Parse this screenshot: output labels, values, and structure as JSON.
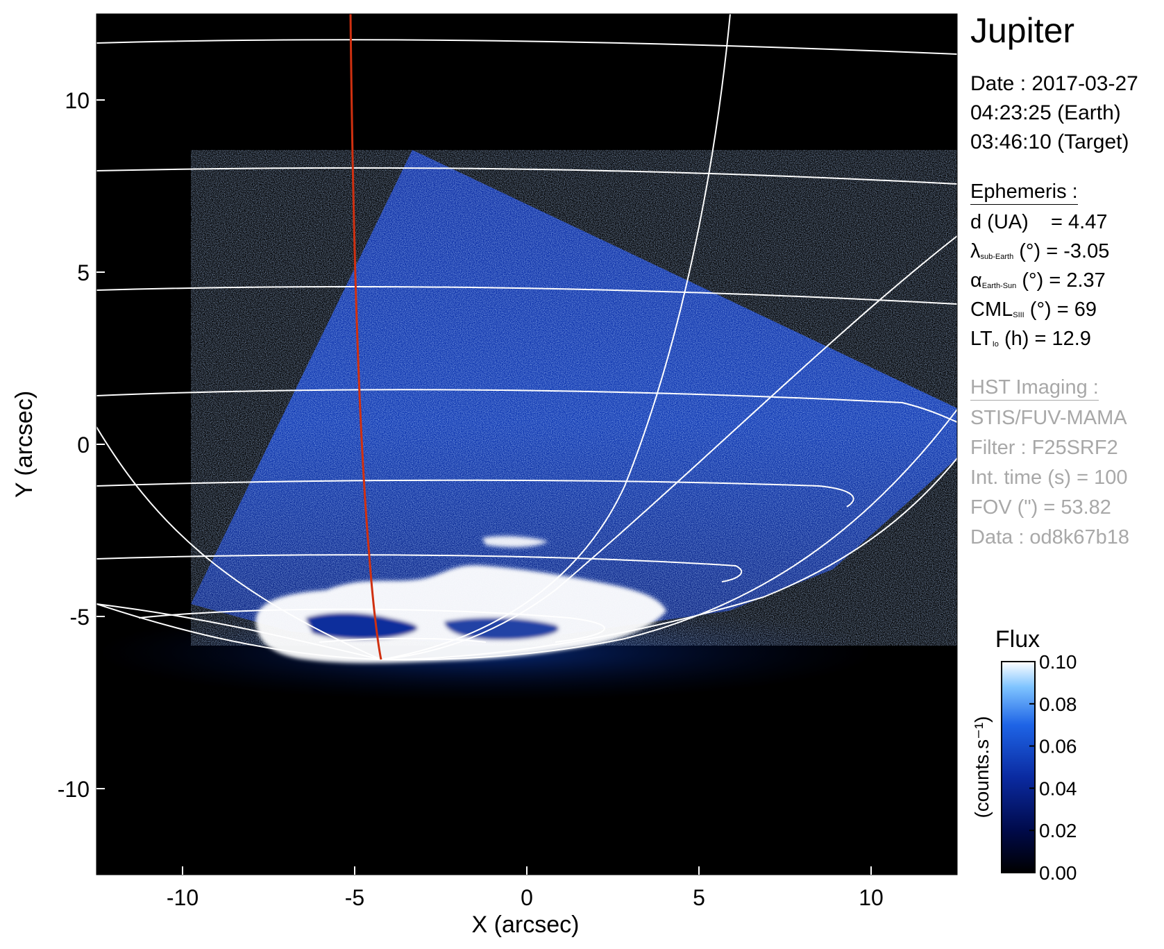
{
  "title": "Jupiter",
  "date": {
    "line1": "Date : 2017-03-27",
    "line2": "04:23:25 (Earth)",
    "line3": "03:46:10 (Target)"
  },
  "ephemeris": {
    "heading": "Ephemeris :",
    "rows": [
      {
        "symbol": "d (UA)",
        "sub": "",
        "rest": "    = 4.47"
      },
      {
        "symbol": "λ",
        "sub": "sub-Earth",
        "rest": " (°) = -3.05"
      },
      {
        "symbol": "α",
        "sub": "Earth-Sun",
        "rest": " (°) = 2.37"
      },
      {
        "symbol": "CML",
        "sub": "SIII",
        "rest": " (°) = 69"
      },
      {
        "symbol": "LT",
        "sub": "Io",
        "rest": " (h) = 12.9"
      }
    ]
  },
  "hst": {
    "heading": "HST Imaging :",
    "rows": [
      "STIS/FUV-MAMA",
      "Filter : F25SRF2",
      "Int. time (s) = 100",
      "FOV (\") = 53.82",
      "Data : od8k67b18"
    ]
  },
  "axes": {
    "xlabel": "X (arcsec)",
    "ylabel": "Y (arcsec)",
    "xticks": [
      "-10",
      "-5",
      "0",
      "5",
      "10"
    ],
    "yticks": [
      "10",
      "5",
      "0",
      "-5",
      "-10"
    ],
    "xtick_values": [
      -10,
      -5,
      0,
      5,
      10
    ],
    "ytick_values": [
      10,
      5,
      0,
      -5,
      -10
    ],
    "xlim": [
      -12.5,
      12.5
    ],
    "ylim": [
      -12.5,
      12.5
    ]
  },
  "colorbar": {
    "title": "Flux",
    "unit": "(counts.s⁻¹)",
    "ticks": [
      "0.10",
      "0.08",
      "0.06",
      "0.04",
      "0.02",
      "0.00"
    ],
    "tick_values": [
      0.1,
      0.08,
      0.06,
      0.04,
      0.02,
      0.0
    ],
    "range": [
      0.0,
      0.1
    ],
    "colors": [
      "#000000",
      "#000a4a",
      "#0a2aa0",
      "#1e64e6",
      "#7fc4ff",
      "#ffffff"
    ]
  },
  "colors": {
    "background": "#000000",
    "grid": "#ffffff",
    "meridian": "#d03010",
    "muted_text": "#a8a8a8"
  }
}
